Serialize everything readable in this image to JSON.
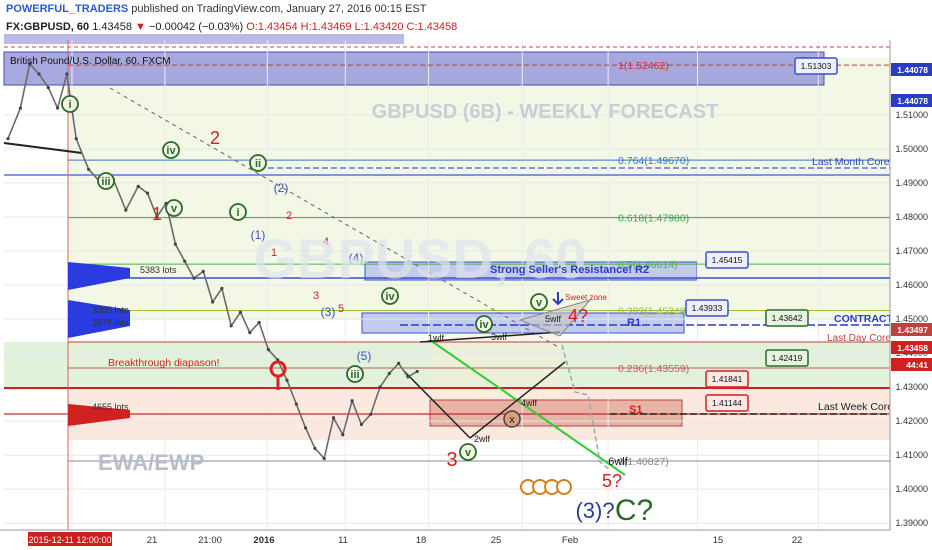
{
  "header": {
    "author": "POWERFUL_TRADERS",
    "published": "published on TradingView.com, January 27, 2016 00:15 EST",
    "symbol": "FX:GBPUSD, 60",
    "last": "1.43458",
    "change": "−0.00042 (−0.03%)",
    "open": "O:1.43454",
    "high": "H:1.43469",
    "low": "L:1.43420",
    "close": "C:1.43458",
    "instrument": "British Pound/U.S. Dollar, 60, FXCM"
  },
  "chart_data": {
    "type": "line",
    "title": "GBPUSD (6B) - WEEKLY FORECAST",
    "watermark": "GBPUSD, 60",
    "ylim": [
      1.388,
      1.532
    ],
    "y_ticks": [
      1.39,
      1.4,
      1.41,
      1.42,
      1.43,
      1.44,
      1.45,
      1.46,
      1.47,
      1.48,
      1.49,
      1.5,
      1.51
    ],
    "y_tick_labels": [
      "1.39000",
      "1.40000",
      "1.41000",
      "1.42000",
      "1.43000",
      "1.44000",
      "1.45000",
      "1.46000",
      "1.47000",
      "1.48000",
      "1.49000",
      "1.50000",
      "1.51000"
    ],
    "x_ticks": [
      {
        "t": 0,
        "label": "2015-12-11 12:00:00"
      },
      {
        "t": 0.106,
        "label": "21"
      },
      {
        "t": 0.223,
        "label": "21:00"
      },
      {
        "t": 0.312,
        "label": "2016"
      },
      {
        "t": 0.407,
        "label": "11"
      },
      {
        "t": 0.514,
        "label": "18"
      },
      {
        "t": 0.612,
        "label": "25"
      },
      {
        "t": 0.714,
        "label": "Feb"
      },
      {
        "t": 0.852,
        "label": "15"
      },
      {
        "t": 0.955,
        "label": "22"
      }
    ],
    "series": [
      {
        "values_time": [
          0.0,
          0.02,
          0.035,
          0.05,
          0.065,
          0.08,
          0.095,
          0.11,
          0.13,
          0.15,
          0.17,
          0.19,
          0.21,
          0.225,
          0.24,
          0.255,
          0.27,
          0.285,
          0.3,
          0.315,
          0.33,
          0.345,
          0.36,
          0.375,
          0.39,
          0.405,
          0.42,
          0.435,
          0.45,
          0.465,
          0.48,
          0.495,
          0.51,
          0.525,
          0.54,
          0.555,
          0.57,
          0.585,
          0.6,
          0.615,
          0.63,
          0.645,
          0.66
        ],
        "values": [
          1.503,
          1.512,
          1.525,
          1.522,
          1.518,
          1.512,
          1.522,
          1.503,
          1.494,
          1.49,
          1.491,
          1.482,
          1.489,
          1.487,
          1.48,
          1.484,
          1.472,
          1.467,
          1.462,
          1.464,
          1.455,
          1.459,
          1.448,
          1.452,
          1.446,
          1.449,
          1.441,
          1.438,
          1.432,
          1.425,
          1.418,
          1.412,
          1.409,
          1.421,
          1.416,
          1.426,
          1.419,
          1.422,
          1.43,
          1.434,
          1.437,
          1.433,
          1.4346
        ]
      }
    ],
    "levels": {
      "fib_1": "1(1.52462)",
      "fib_764": "0.764(1.49670)",
      "fib_618": "0.618(1.47980)",
      "fib_5": "0.5(1.46614)",
      "fib_382": "0.382(1.45249)",
      "fib_236": "0.236(1.43559)",
      "fib_0": "0(1.40827)"
    },
    "labels": {
      "last_month_core": "Last Month Core",
      "last_day_core": "Last Day Core",
      "last_week_core": "Last Week Core",
      "contract": "CONTRACT!",
      "resistance": "Strong Seller's Resistance! R2",
      "r1": "R1",
      "s1": "S1",
      "breakthrough": "Breakthrough diapason!",
      "ewa": "EWA/EWP",
      "sweet": "Sweet zone"
    },
    "lots": [
      "5383 lots",
      "3305 lots",
      "3579 lots",
      "4655 lots"
    ],
    "price_boxes": [
      "1.51303",
      "1.45415",
      "1.43933",
      "1.43642",
      "1.42419",
      "1.41841",
      "1.41144"
    ],
    "axis_tags": [
      "1.44078",
      "1.44078",
      "1.43497",
      "1.43458",
      "44:41"
    ],
    "wave_labels": [
      "i",
      "ii",
      "iii",
      "iv",
      "v",
      "i",
      "ii",
      "iii",
      "iv",
      "v",
      "(1)",
      "(2)",
      "(3)",
      "(4)",
      "(5)",
      "1",
      "2",
      "3",
      "4",
      "5",
      "1",
      "2",
      "3",
      "4?",
      "5?",
      "(3)?",
      "C?",
      "1wlf",
      "2wlf",
      "3wlf",
      "4wlf",
      "5wlf",
      "6wlf"
    ]
  }
}
